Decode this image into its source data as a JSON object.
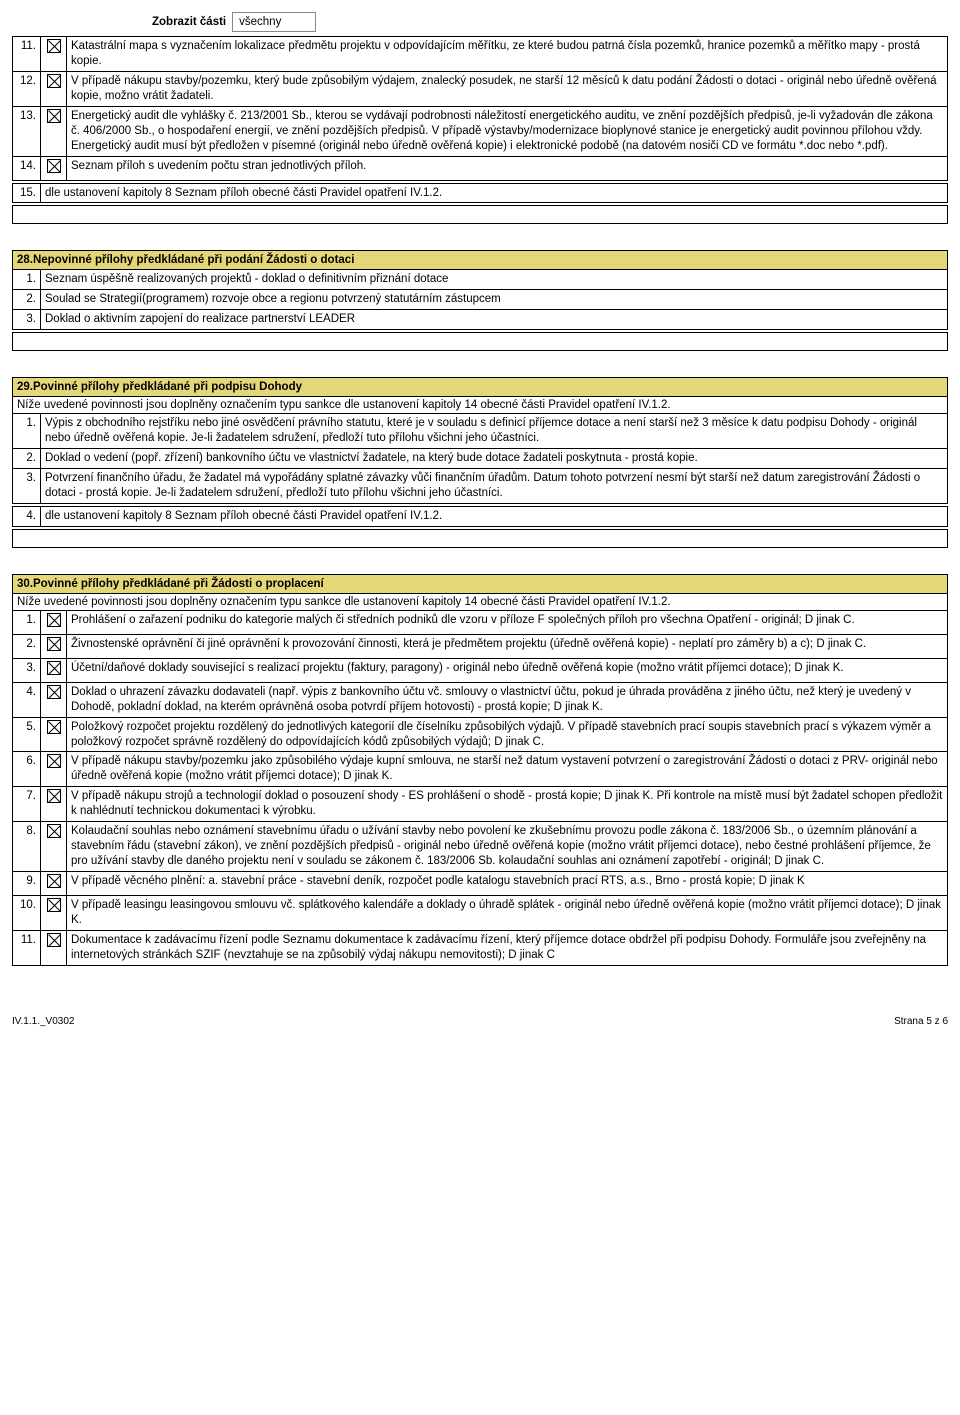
{
  "top": {
    "label": "Zobrazit části",
    "value": "všechny"
  },
  "section27_rows": [
    {
      "n": "11.",
      "cb": true,
      "txt": "Katastrální mapa s vyznačením lokalizace předmětu projektu v odpovídajícím měřítku, ze které budou patrná čísla pozemků, hranice pozemků a měřítko mapy - prostá kopie."
    },
    {
      "n": "12.",
      "cb": true,
      "txt": "V případě nákupu stavby/pozemku, který bude způsobilým výdajem, znalecký posudek, ne starší 12 měsíců k datu podání Žádosti o dotaci - originál nebo úředně ověřená kopie, možno vrátit žadateli."
    },
    {
      "n": "13.",
      "cb": true,
      "txt": "Energetický audit dle vyhlášky č. 213/2001 Sb., kterou se vydávají podrobnosti náležitostí energetického auditu, ve znění pozdějších předpisů, je-li vyžadován dle zákona č. 406/2000 Sb., o hospodaření energií, ve znění pozdějších předpisů. V případě výstavby/modernizace bioplynové stanice je energetický audit povinnou přílohou vždy. Energetický audit musí být předložen v písemné (originál nebo úředně ověřená kopie) i elektronické podobě (na datovém nosiči CD ve formátu *.doc nebo *.pdf)."
    },
    {
      "n": "14.",
      "cb": true,
      "txt": "Seznam příloh s uvedením počtu stran jednotlivých příloh."
    }
  ],
  "section27_tail": [
    {
      "n": "15.",
      "txt": "dle ustanovení kapitoly 8 Seznam příloh obecné části Pravidel opatření IV.1.2."
    }
  ],
  "sec28": {
    "title": "28.Nepovinné přílohy předkládané při podání Žádosti o dotaci",
    "rows": [
      {
        "n": "1.",
        "txt": "Seznam úspěšně realizovaných projektů - doklad o definitivním přiznání dotace"
      },
      {
        "n": "2.",
        "txt": "Soulad se Strategií(programem) rozvoje obce a regionu potvrzený statutárním zástupcem"
      },
      {
        "n": "3.",
        "txt": "Doklad o aktivním zapojení do realizace partnerství LEADER"
      }
    ]
  },
  "sec29": {
    "title": "29.Povinné přílohy předkládané při podpisu Dohody",
    "sub": "Níže uvedené povinnosti jsou doplněny označením typu sankce dle ustanovení kapitoly 14 obecné části Pravidel opatření IV.1.2.",
    "rows": [
      {
        "n": "1.",
        "txt": "Výpis z obchodního rejstříku nebo jiné osvědčení právního statutu, které je v souladu s definicí příjemce dotace a není starší než 3 měsíce k datu podpisu Dohody -  originál nebo úředně ověřená kopie. Je-li žadatelem sdružení, předloží tuto přílohu všichni jeho účastníci."
      },
      {
        "n": "2.",
        "txt": "Doklad o vedení (popř. zřízení) bankovního  účtu ve vlastnictví žadatele, na který bude dotace žadateli poskytnuta - prostá kopie."
      },
      {
        "n": "3.",
        "txt": "Potvrzení finančního úřadu, že žadatel má vypořádány splatné závazky vůči finančním úřadům. Datum tohoto potvrzení nesmí být starší než datum zaregistrování Žádosti o dotaci - prostá kopie. Je-li žadatelem sdružení, předloží tuto přílohu všichni jeho účastníci."
      }
    ],
    "tail": [
      {
        "n": "4.",
        "txt": "dle ustanovení kapitoly 8 Seznam příloh obecné části Pravidel opatření IV.1.2."
      }
    ]
  },
  "sec30": {
    "title": "30.Povinné přílohy předkládané při Žádosti o proplacení",
    "sub": "Níže uvedené povinnosti jsou doplněny označením typu sankce dle ustanovení kapitoly 14 obecné části Pravidel opatření IV.1.2.",
    "rows": [
      {
        "n": "1.",
        "cb": true,
        "txt": "Prohlášení o zařazení podniku do kategorie malých či středních podniků dle vzoru v příloze F společných příloh pro všechna Opatření - originál; D jinak C."
      },
      {
        "n": "2.",
        "cb": true,
        "txt": "Živnostenské oprávnění či jiné oprávnění k provozování činnosti, která je předmětem projektu (úředně ověřená kopie) - neplatí pro záměry b) a c); D jinak C."
      },
      {
        "n": "3.",
        "cb": true,
        "txt": "Účetní/daňové doklady související s realizací projektu (faktury, paragony) - originál nebo úředně ověřená kopie (možno vrátit příjemci dotace); D jinak K."
      },
      {
        "n": "4.",
        "cb": true,
        "txt": "Doklad o uhrazení závazku dodavateli (např. výpis z bankovního účtu vč. smlouvy o vlastnictví účtu, pokud je úhrada prováděna z jiného účtu, než který je uvedený v Dohodě, pokladní doklad, na kterém oprávněná osoba potvrdí příjem hotovosti) - prostá kopie; D jinak K."
      },
      {
        "n": "5.",
        "cb": true,
        "txt": "Položkový rozpočet projektu rozdělený do jednotlivých kategorií dle číselníku způsobilých výdajů. V případě stavebních prací soupis stavebních prací s výkazem výměr a položkový rozpočet správně rozdělený do odpovídajících kódů způsobilých výdajů; D jinak C."
      },
      {
        "n": "6.",
        "cb": true,
        "txt": "V případě nákupu stavby/pozemku jako způsobilého výdaje kupní smlouva, ne starší než datum vystavení potvrzení o zaregistrování Žádosti o dotaci z PRV- originál nebo úředně ověřená kopie (možno vrátit příjemci dotace); D jinak K."
      },
      {
        "n": "7.",
        "cb": true,
        "txt": "V případě nákupu strojů a technologií doklad o posouzení shody - ES prohlášení o shodě - prostá kopie; D jinak K. Při kontrole na místě musí být žadatel schopen předložit k nahlédnutí technickou dokumentaci k výrobku."
      },
      {
        "n": "8.",
        "cb": true,
        "txt": "Kolaudační souhlas nebo oznámení stavebnímu úřadu o užívání stavby nebo povolení ke zkušebnímu provozu podle zákona č. 183/2006 Sb., o územním plánování a stavebním řádu (stavební zákon), ve znění pozdějších předpisů - originál nebo úředně ověřená kopie (možno vrátit příjemci dotace), nebo čestné prohlášení příjemce, že pro užívání stavby dle daného projektu není v souladu se zákonem č. 183/2006 Sb. kolaudační souhlas ani oznámení zapotřebí - originál; D jinak C."
      },
      {
        "n": "9.",
        "cb": true,
        "txt": "V případě věcného plnění: a. stavební práce - stavební deník, rozpočet podle katalogu stavebních prací RTS, a.s., Brno - prostá kopie; D jinak K"
      },
      {
        "n": "10.",
        "cb": true,
        "txt": "V případě leasingu leasingovou smlouvu vč. splátkového kalendáře a doklady o úhradě splátek - originál nebo úředně ověřená kopie (možno vrátit příjemci dotace); D jinak K."
      },
      {
        "n": "11.",
        "cb": true,
        "txt": "Dokumentace k zadávacímu řízení podle Seznamu dokumentace k zadávacímu řízení, který příjemce dotace obdržel při podpisu Dohody. Formuláře jsou zveřejněny na internetových stránkách SZIF (nevztahuje se na způsobilý výdaj nákupu nemovitosti); D jinak C"
      }
    ]
  },
  "footer": {
    "left": "IV.1.1._V0302",
    "right": "Strana 5 z 6"
  }
}
